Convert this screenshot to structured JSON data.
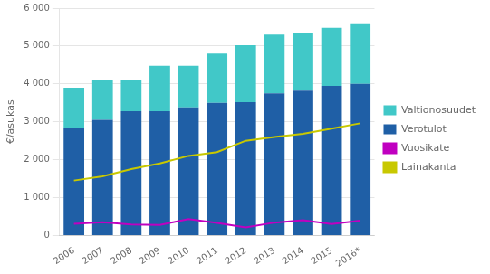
{
  "chart_data": {
    "type": "bar",
    "categories": [
      "2006",
      "2007",
      "2008",
      "2009",
      "2010",
      "2011",
      "2012",
      "2013",
      "2014",
      "2015",
      "2016*"
    ],
    "series": [
      {
        "name": "Verotulot",
        "type": "bar",
        "color": "#1f5fa6",
        "values": [
          2850,
          3050,
          3280,
          3280,
          3380,
          3500,
          3520,
          3750,
          3820,
          3950,
          4000
        ]
      },
      {
        "name": "Valtionosuudet",
        "type": "bar",
        "color": "#41c8c8",
        "values": [
          1050,
          1060,
          830,
          1200,
          1100,
          1300,
          1500,
          1550,
          1510,
          1530,
          1600
        ]
      },
      {
        "name": "Vuosikate",
        "type": "line",
        "color": "#c000c0",
        "values": [
          310,
          350,
          290,
          280,
          430,
          330,
          210,
          340,
          400,
          300,
          390
        ]
      },
      {
        "name": "Lainakanta",
        "type": "line",
        "color": "#c8c800",
        "values": [
          1450,
          1560,
          1750,
          1900,
          2100,
          2200,
          2500,
          2600,
          2680,
          2820,
          2960
        ]
      }
    ],
    "ylabel": "€/asukas",
    "ylim": [
      0,
      6000
    ],
    "yticks": [
      0,
      {
        "value": 1000,
        "label": "1 000"
      },
      {
        "value": 2000,
        "label": "2 000"
      },
      {
        "value": 3000,
        "label": "3 000"
      },
      {
        "value": 4000,
        "label": "4 000"
      },
      {
        "value": 5000,
        "label": "5 000"
      },
      {
        "value": 6000,
        "label": "6 000"
      }
    ],
    "stacked": true,
    "grid": true,
    "legend": "right"
  }
}
